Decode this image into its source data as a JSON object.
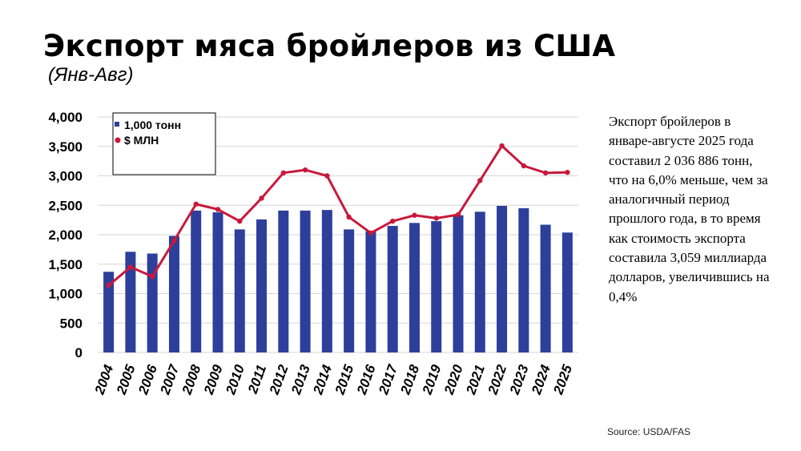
{
  "title": "Экспорт мяса бройлеров из США",
  "subtitle": "(Янв-Авг)",
  "description": "Экспорт бройлеров в январе-августе 2025 года составил 2 036 886 тонн, что на 6,0% меньше, чем за аналогичный период прошлого года, в то время как стоимость экспорта составила 3,059 миллиарда долларов, увеличившись на 0,4%",
  "source": "Source: USDA/FAS",
  "chart_data": {
    "type": "bar+line",
    "categories": [
      "2004",
      "2005",
      "2006",
      "2007",
      "2008",
      "2009",
      "2010",
      "2011",
      "2012",
      "2013",
      "2014",
      "2015",
      "2016",
      "2017",
      "2018",
      "2019",
      "2020",
      "2021",
      "2022",
      "2023",
      "2024",
      "2025"
    ],
    "series": [
      {
        "name": "1,000 тонн",
        "type": "bar",
        "color": "#2d3f9a",
        "values": [
          1370,
          1710,
          1680,
          1980,
          2410,
          2380,
          2090,
          2260,
          2410,
          2410,
          2420,
          2090,
          2060,
          2150,
          2200,
          2230,
          2330,
          2390,
          2490,
          2450,
          2170,
          2037
        ]
      },
      {
        "name": "$ МЛН",
        "type": "line",
        "color": "#c8193b",
        "values": [
          1140,
          1450,
          1290,
          1900,
          2520,
          2430,
          2230,
          2620,
          3050,
          3100,
          3000,
          2300,
          2030,
          2230,
          2330,
          2280,
          2340,
          2920,
          3510,
          3170,
          3050,
          3059
        ]
      }
    ],
    "y_ticks": [
      "4,000",
      "3,500",
      "3,000",
      "2,500",
      "2,000",
      "1,500",
      "1,000",
      "500",
      "0"
    ],
    "ylim": [
      0,
      4000
    ],
    "grid": true,
    "legend": "top-left"
  }
}
